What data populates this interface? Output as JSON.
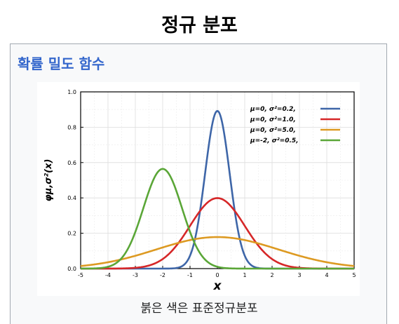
{
  "page": {
    "title": "정규 분포",
    "section_title": "확률 밀도 함수",
    "caption": "붉은 색은 표준정규분포"
  },
  "chart_data": {
    "type": "line",
    "title": "",
    "xlabel": "x",
    "ylabel": "φμ,σ²(x)",
    "xlim": [
      -5,
      5
    ],
    "ylim": [
      0,
      1.0
    ],
    "xticks": [
      "-5",
      "-4",
      "-3",
      "-2",
      "-1",
      "0",
      "1",
      "2",
      "3",
      "4",
      "5"
    ],
    "yticks": [
      "0.0",
      "0.2",
      "0.4",
      "0.6",
      "0.8",
      "1.0"
    ],
    "grid": true,
    "legend_position": "top-right",
    "series": [
      {
        "name": "μ=0, σ²=0.2,",
        "mu": 0,
        "variance": 0.2,
        "color": "#3e66a8"
      },
      {
        "name": "μ=0, σ²=1.0,",
        "mu": 0,
        "variance": 1.0,
        "color": "#d62728"
      },
      {
        "name": "μ=0, σ²=5.0,",
        "mu": 0,
        "variance": 5.0,
        "color": "#dd9a22"
      },
      {
        "name": "μ=-2, σ²=0.5,",
        "mu": -2,
        "variance": 0.5,
        "color": "#5aa637"
      }
    ]
  }
}
